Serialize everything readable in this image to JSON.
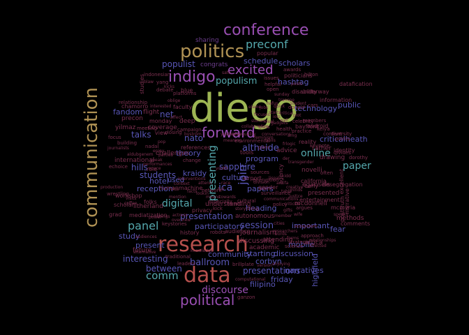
{
  "palette": {
    "gold": "#b09254",
    "green": "#9db553",
    "red": "#b6504d",
    "purple": "#9a4fb3",
    "indigo": "#5956b7",
    "teal": "#55a8ad",
    "maroon": "#7b2f4f",
    "violet": "#6d3e8e",
    "blue": "#4a5aa8"
  },
  "words": [
    {
      "text": "diego",
      "color": "green"
    },
    {
      "text": "communication",
      "color": "gold"
    },
    {
      "text": "research",
      "color": "red"
    },
    {
      "text": "data",
      "color": "red"
    },
    {
      "text": "politics",
      "color": "gold"
    },
    {
      "text": "conference",
      "color": "purple"
    },
    {
      "text": "political",
      "color": "purple"
    },
    {
      "text": "indigo",
      "color": "purple"
    },
    {
      "text": "excited",
      "color": "purple"
    },
    {
      "text": "forward",
      "color": "purple"
    },
    {
      "text": "preconf",
      "color": "teal"
    },
    {
      "text": "digital",
      "color": "teal"
    },
    {
      "text": "panel",
      "color": "teal"
    },
    {
      "text": "online",
      "color": "teal"
    },
    {
      "text": "paper",
      "color": "teal"
    },
    {
      "text": "presenting",
      "color": "teal"
    },
    {
      "text": "populism",
      "color": "teal"
    },
    {
      "text": "comm",
      "color": "teal"
    },
    {
      "text": "discourse",
      "color": "purple"
    },
    {
      "text": "join",
      "color": "indigo"
    },
    {
      "text": "nato",
      "color": "indigo"
    },
    {
      "text": "ballroom",
      "color": "indigo"
    },
    {
      "text": "students",
      "color": "indigo"
    },
    {
      "text": "session",
      "color": "indigo"
    },
    {
      "text": "interesting",
      "color": "indigo"
    },
    {
      "text": "between",
      "color": "indigo"
    },
    {
      "text": "technology",
      "color": "indigo"
    },
    {
      "text": "schedule",
      "color": "indigo"
    },
    {
      "text": "scholars",
      "color": "indigo"
    },
    {
      "text": "hashtag",
      "color": "indigo"
    },
    {
      "text": "populist",
      "color": "indigo"
    },
    {
      "text": "altheide",
      "color": "indigo"
    },
    {
      "text": "presentation",
      "color": "indigo"
    },
    {
      "text": "participatory",
      "color": "indigo"
    },
    {
      "text": "sapphire",
      "color": "indigo"
    },
    {
      "text": "reception",
      "color": "indigo"
    },
    {
      "text": "program",
      "color": "indigo"
    },
    {
      "text": "heading",
      "color": "indigo"
    },
    {
      "text": "public",
      "color": "indigo"
    },
    {
      "text": "criticalheath",
      "color": "indigo"
    },
    {
      "text": "fear",
      "color": "indigo"
    },
    {
      "text": "important",
      "color": "indigo"
    },
    {
      "text": "presentations",
      "color": "indigo"
    },
    {
      "text": "starting",
      "color": "indigo"
    },
    {
      "text": "community",
      "color": "indigo"
    },
    {
      "text": "corbyn",
      "color": "indigo"
    },
    {
      "text": "friday",
      "color": "indigo"
    },
    {
      "text": "filipino",
      "color": "indigo"
    },
    {
      "text": "mobile",
      "color": "indigo"
    },
    {
      "text": "highfield",
      "color": "indigo"
    },
    {
      "text": "narratives",
      "color": "indigo"
    },
    {
      "text": "discussion",
      "color": "indigo"
    },
    {
      "text": "papers",
      "color": "indigo"
    },
    {
      "text": "ica",
      "color": "indigo"
    },
    {
      "text": "culture",
      "color": "indigo"
    },
    {
      "text": "hills",
      "color": "indigo"
    },
    {
      "text": "talks",
      "color": "indigo"
    },
    {
      "text": "fandom",
      "color": "indigo"
    },
    {
      "text": "net",
      "color": "indigo"
    },
    {
      "text": "theory",
      "color": "indigo"
    },
    {
      "text": "kraidy",
      "color": "indigo"
    },
    {
      "text": "hotel",
      "color": "indigo"
    },
    {
      "text": "used",
      "color": "indigo"
    },
    {
      "text": "present",
      "color": "indigo"
    },
    {
      "text": "study",
      "color": "indigo"
    },
    {
      "text": "congrats",
      "color": "violet"
    },
    {
      "text": "sharing",
      "color": "violet"
    },
    {
      "text": "popular",
      "color": "maroon"
    },
    {
      "text": "studies",
      "color": "maroon"
    },
    {
      "text": "flight",
      "color": "maroon"
    },
    {
      "text": "precon",
      "color": "maroon"
    },
    {
      "text": "monday",
      "color": "maroon"
    },
    {
      "text": "yilmaz",
      "color": "maroon"
    },
    {
      "text": "international",
      "color": "maroon"
    },
    {
      "text": "future",
      "color": "maroon"
    },
    {
      "text": "litherland",
      "color": "maroon"
    },
    {
      "text": "folks",
      "color": "maroon"
    },
    {
      "text": "mediatization",
      "color": "maroon"
    },
    {
      "text": "keystories",
      "color": "maroon"
    },
    {
      "text": "chamorro",
      "color": "maroon"
    },
    {
      "text": "relationship",
      "color": "maroon"
    },
    {
      "text": "workshop",
      "color": "maroon"
    },
    {
      "text": "scholar",
      "color": "maroon"
    },
    {
      "text": "grad",
      "color": "maroon"
    },
    {
      "text": "wrestling",
      "color": "maroon"
    },
    {
      "text": "journalism",
      "color": "maroon"
    },
    {
      "text": "academic",
      "color": "maroon"
    },
    {
      "text": "discussing",
      "color": "maroon"
    },
    {
      "text": "attending",
      "color": "maroon"
    },
    {
      "text": "autonomous",
      "color": "maroon"
    },
    {
      "text": "understanding",
      "color": "maroon"
    },
    {
      "text": "privacy",
      "color": "maroon"
    },
    {
      "text": "history",
      "color": "maroon"
    },
    {
      "text": "audience",
      "color": "maroon"
    },
    {
      "text": "robots",
      "color": "maroon"
    },
    {
      "text": "mcdonnell",
      "color": "maroon"
    },
    {
      "text": "egansels",
      "color": "maroon"
    },
    {
      "text": "novelli",
      "color": "maroon"
    },
    {
      "text": "california",
      "color": "maroon"
    },
    {
      "text": "drawing",
      "color": "maroon"
    },
    {
      "text": "identity",
      "color": "maroon"
    },
    {
      "text": "rather",
      "color": "maroon"
    },
    {
      "text": "reality",
      "color": "maroon"
    },
    {
      "text": "methods",
      "color": "maroon"
    },
    {
      "text": "comments",
      "color": "maroon"
    },
    {
      "text": "narrative",
      "color": "maroon"
    },
    {
      "text": "posttruth",
      "color": "maroon"
    },
    {
      "text": "africa",
      "color": "maroon"
    },
    {
      "text": "presented",
      "color": "maroon"
    },
    {
      "text": "entertainment",
      "color": "maroon"
    },
    {
      "text": "early",
      "color": "maroon"
    },
    {
      "text": "android",
      "color": "maroon"
    },
    {
      "text": "bayfront",
      "color": "maroon"
    },
    {
      "text": "information",
      "color": "maroon"
    },
    {
      "text": "underway",
      "color": "maroon"
    },
    {
      "text": "datafication",
      "color": "maroon"
    },
    {
      "text": "politicians",
      "color": "maroon"
    },
    {
      "text": "hilton",
      "color": "maroon"
    },
    {
      "text": "awards",
      "color": "maroon"
    },
    {
      "text": "indonesian",
      "color": "maroon"
    },
    {
      "text": "yang",
      "color": "maroon"
    },
    {
      "text": "debate",
      "color": "maroon"
    },
    {
      "text": "faculty",
      "color": "maroon"
    },
    {
      "text": "deep",
      "color": "maroon"
    },
    {
      "text": "coverage",
      "color": "maroon"
    },
    {
      "text": "meeting",
      "color": "maroon"
    },
    {
      "text": "view",
      "color": "maroon"
    },
    {
      "text": "challenges",
      "color": "maroon"
    },
    {
      "text": "role",
      "color": "maroon"
    },
    {
      "text": "humanmachine",
      "color": "maroon"
    },
    {
      "text": "environmental",
      "color": "maroon"
    },
    {
      "text": "platforms",
      "color": "maroon"
    },
    {
      "text": "blue",
      "color": "maroon"
    },
    {
      "text": "campaign",
      "color": "maroon"
    },
    {
      "text": "references",
      "color": "maroon"
    },
    {
      "text": "change",
      "color": "maroon"
    },
    {
      "text": "issues",
      "color": "maroon"
    },
    {
      "text": "helpful",
      "color": "maroon"
    },
    {
      "text": "network",
      "color": "maroon"
    },
    {
      "text": "especially",
      "color": "maroon"
    },
    {
      "text": "kick",
      "color": "maroon"
    },
    {
      "text": "strategic",
      "color": "maroon"
    },
    {
      "text": "science",
      "color": "maroon"
    },
    {
      "text": "ganzon",
      "color": "maroon"
    },
    {
      "text": "computational",
      "color": "maroon"
    },
    {
      "text": "brillplate",
      "color": "maroon"
    },
    {
      "text": "version",
      "color": "maroon"
    },
    {
      "text": "enjoying",
      "color": "maroon"
    },
    {
      "text": "traditional",
      "color": "maroon"
    },
    {
      "text": "leaders",
      "color": "maroon"
    },
    {
      "text": "knowledge",
      "color": "maroon"
    },
    {
      "text": "alternative",
      "color": "maroon"
    },
    {
      "text": "audiences",
      "color": "maroon"
    },
    {
      "text": "production",
      "color": "maroon"
    },
    {
      "text": "desegregation",
      "color": "maroon"
    },
    {
      "text": "divides",
      "color": "maroon"
    },
    {
      "text": "dorothy",
      "color": "maroon"
    },
    {
      "text": "excellent",
      "color": "maroon"
    },
    {
      "text": "often",
      "color": "maroon"
    },
    {
      "text": "affected",
      "color": "maroon"
    },
    {
      "text": "relationships",
      "color": "maroon"
    },
    {
      "text": "approach",
      "color": "maroon"
    },
    {
      "text": "mcmyria",
      "color": "maroon"
    },
    {
      "text": "speaks",
      "color": "maroon"
    },
    {
      "text": "argues",
      "color": "maroon"
    },
    {
      "text": "focus",
      "color": "maroon"
    },
    {
      "text": "echoice",
      "color": "maroon"
    },
    {
      "text": "nadal",
      "color": "maroon"
    },
    {
      "text": "visits",
      "color": "maroon"
    },
    {
      "text": "journalists",
      "color": "maroon"
    },
    {
      "text": "performances",
      "color": "maroon"
    },
    {
      "text": "speak",
      "color": "maroon"
    },
    {
      "text": "member",
      "color": "maroon"
    },
    {
      "text": "policy",
      "color": "maroon"
    },
    {
      "text": "event",
      "color": "maroon"
    },
    {
      "text": "cultural",
      "color": "maroon"
    },
    {
      "text": "communications",
      "color": "maroon"
    },
    {
      "text": "storytelling",
      "color": "maroon"
    },
    {
      "text": "gender",
      "color": "maroon"
    },
    {
      "text": "airport",
      "color": "maroon"
    },
    {
      "text": "encryption",
      "color": "maroon"
    },
    {
      "text": "surveillance",
      "color": "maroon"
    },
    {
      "text": "sources",
      "color": "maroon"
    },
    {
      "text": "tools",
      "color": "maroon"
    },
    {
      "text": "advice",
      "color": "maroon"
    },
    {
      "text": "agency",
      "color": "maroon"
    },
    {
      "text": "health",
      "color": "maroon"
    },
    {
      "text": "keiya",
      "color": "maroon"
    },
    {
      "text": "donald",
      "color": "maroon"
    },
    {
      "text": "student",
      "color": "maroon"
    },
    {
      "text": "cars",
      "color": "maroon"
    },
    {
      "text": "diversity",
      "color": "maroon"
    },
    {
      "text": "celebrity",
      "color": "maroon"
    },
    {
      "text": "keynote",
      "color": "maroon"
    },
    {
      "text": "content",
      "color": "maroon"
    },
    {
      "text": "members",
      "color": "maroon"
    },
    {
      "text": "points",
      "color": "maroon"
    },
    {
      "text": "practice",
      "color": "maroon"
    },
    {
      "text": "disability",
      "color": "maroon"
    },
    {
      "text": "sunday",
      "color": "maroon"
    },
    {
      "text": "open",
      "color": "maroon"
    },
    {
      "text": "safe",
      "color": "maroon"
    },
    {
      "text": "starts",
      "color": "maroon"
    },
    {
      "text": "plot",
      "color": "maroon"
    },
    {
      "text": "posts",
      "color": "maroon"
    },
    {
      "text": "blaw",
      "color": "maroon"
    },
    {
      "text": "kicks",
      "color": "maroon"
    },
    {
      "text": "oblige",
      "color": "maroon"
    },
    {
      "text": "interested",
      "color": "maroon"
    },
    {
      "text": "closing",
      "color": "maroon"
    },
    {
      "text": "bystrom",
      "color": "maroon"
    },
    {
      "text": "affect",
      "color": "maroon"
    },
    {
      "text": "pop",
      "color": "maroon"
    },
    {
      "text": "building",
      "color": "maroon"
    },
    {
      "text": "coffee",
      "color": "maroon"
    },
    {
      "text": "space",
      "color": "maroon"
    },
    {
      "text": "aldubgenem",
      "color": "maroon"
    },
    {
      "text": "enjoy",
      "color": "maroon"
    },
    {
      "text": "parties",
      "color": "maroon"
    },
    {
      "text": "lookin",
      "color": "maroon"
    },
    {
      "text": "means",
      "color": "maroon"
    },
    {
      "text": "mention",
      "color": "maroon"
    },
    {
      "text": "vids",
      "color": "maroon"
    },
    {
      "text": "facts",
      "color": "maroon"
    },
    {
      "text": "context",
      "color": "maroon"
    },
    {
      "text": "interventions",
      "color": "maroon"
    },
    {
      "text": "attend",
      "color": "maroon"
    },
    {
      "text": "actress",
      "color": "maroon"
    },
    {
      "text": "overview",
      "color": "maroon"
    },
    {
      "text": "power",
      "color": "maroon"
    },
    {
      "text": "full",
      "color": "maroon"
    },
    {
      "text": "towards",
      "color": "maroon"
    },
    {
      "text": "things",
      "color": "maroon"
    },
    {
      "text": "researchers",
      "color": "maroon"
    },
    {
      "text": "cities",
      "color": "maroon"
    },
    {
      "text": "words",
      "color": "maroon"
    },
    {
      "text": "criticize",
      "color": "maroon"
    },
    {
      "text": "gifts",
      "color": "maroon"
    },
    {
      "text": "creative",
      "color": "maroon"
    },
    {
      "text": "justice",
      "color": "maroon"
    },
    {
      "text": "ecosystem",
      "color": "maroon"
    },
    {
      "text": "wife",
      "color": "maroon"
    },
    {
      "text": "forms",
      "color": "maroon"
    },
    {
      "text": "race",
      "color": "maroon"
    },
    {
      "text": "youth",
      "color": "maroon"
    },
    {
      "text": "division",
      "color": "maroon"
    },
    {
      "text": "users",
      "color": "maroon"
    },
    {
      "text": "lispal",
      "color": "maroon"
    },
    {
      "text": "antifa",
      "color": "maroon"
    },
    {
      "text": "kidd",
      "color": "maroon"
    },
    {
      "text": "der",
      "color": "maroon"
    },
    {
      "text": "frlogic",
      "color": "maroon"
    },
    {
      "text": "amg",
      "color": "maroon"
    },
    {
      "text": "transgender",
      "color": "maroon"
    },
    {
      "text": "minds",
      "color": "maroon"
    },
    {
      "text": "table",
      "color": "maroon"
    },
    {
      "text": "glenn",
      "color": "maroon"
    },
    {
      "text": "feminism",
      "color": "maroon"
    },
    {
      "text": "conversations",
      "color": "maroon"
    },
    {
      "text": "trolls",
      "color": "maroon"
    },
    {
      "text": "spinequality",
      "color": "maroon"
    },
    {
      "text": "meaning",
      "color": "maroon"
    },
    {
      "text": "yesterday",
      "color": "maroon"
    },
    {
      "text": "collaborative",
      "color": "maroon"
    },
    {
      "text": "stories",
      "color": "maroon"
    },
    {
      "text": "lpsrts",
      "color": "maroon"
    },
    {
      "text": "ideal",
      "color": "maroon"
    },
    {
      "text": "gadgets",
      "color": "maroon"
    },
    {
      "text": "iots",
      "color": "maroon"
    },
    {
      "text": "critical",
      "color": "maroon"
    },
    {
      "text": "wall",
      "color": "maroon"
    },
    {
      "text": "quick",
      "color": "maroon"
    },
    {
      "text": "transpe",
      "color": "maroon"
    },
    {
      "text": "jobs",
      "color": "maroon"
    },
    {
      "text": "nafus",
      "color": "maroon"
    },
    {
      "text": "focuses",
      "color": "maroon"
    },
    {
      "text": "elaine",
      "color": "maroon"
    },
    {
      "text": "thoughts",
      "color": "maroon"
    },
    {
      "text": "voice",
      "color": "maroon"
    },
    {
      "text": "forum",
      "color": "maroon"
    },
    {
      "text": "brand",
      "color": "maroon"
    },
    {
      "text": "hosted",
      "color": "maroon"
    },
    {
      "text": "honor",
      "color": "maroon"
    },
    {
      "text": "cultures",
      "color": "maroon"
    },
    {
      "text": "pleased",
      "color": "maroon"
    },
    {
      "text": "hall",
      "color": "maroon"
    },
    {
      "text": "vote",
      "color": "maroon"
    },
    {
      "text": "morality",
      "color": "maroon"
    },
    {
      "text": "opinion",
      "color": "maroon"
    },
    {
      "text": "nice",
      "color": "maroon"
    },
    {
      "text": "fantastic",
      "color": "maroon"
    },
    {
      "text": "twitter",
      "color": "maroon"
    },
    {
      "text": "prison",
      "color": "maroon"
    },
    {
      "text": "visit",
      "color": "maroon"
    },
    {
      "text": "visual",
      "color": "maroon"
    },
    {
      "text": "interventions2",
      "color": "maroon"
    }
  ]
}
